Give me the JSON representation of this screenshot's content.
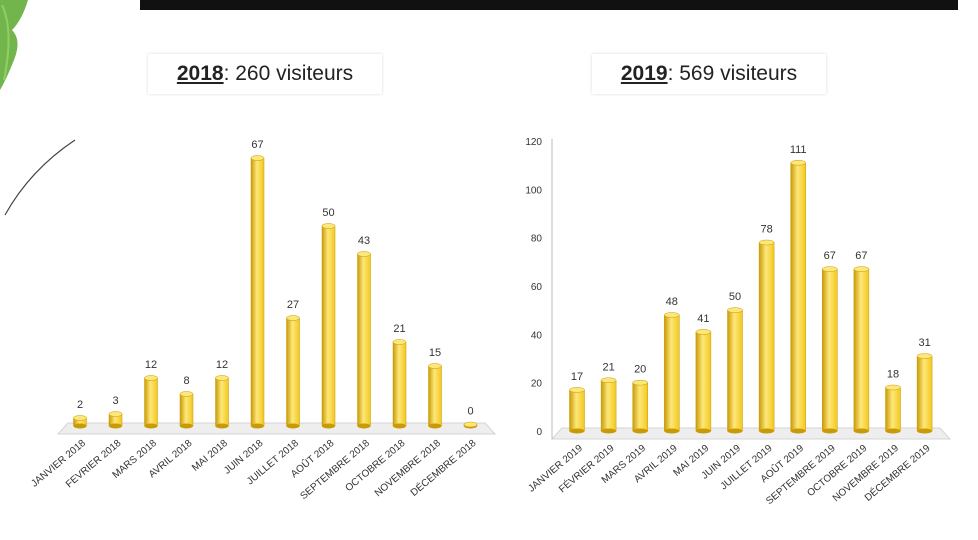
{
  "titles": [
    {
      "year": "2018",
      "rest": " : 260 visiteurs"
    },
    {
      "year": "2019",
      "rest": " : 569 visiteurs"
    }
  ],
  "colors": {
    "bar": "#f2c81e",
    "bar_dark": "#c99a06",
    "bar_light": "#fde77a",
    "floor": "#d4d4d4"
  },
  "chart_data": [
    {
      "type": "bar",
      "categories": [
        "JANVIER 2018",
        "FEVRIER 2018",
        "MARS 2018",
        "AVRIL 2018",
        "MAI 2018",
        "JUIN 2018",
        "JUILLET 2018",
        "AOÛT 2018",
        "SEPTEMBRE 2018",
        "OCTOBRE 2018",
        "NOVEMBRE 2018",
        "DÉCEMBRE 2018"
      ],
      "values": [
        2,
        3,
        12,
        8,
        12,
        67,
        27,
        50,
        43,
        21,
        15,
        0
      ],
      "ylim": [
        0,
        70
      ],
      "y_axis_visible": false
    },
    {
      "type": "bar",
      "categories": [
        "JANVIER 2019",
        "FÉVRIER 2019",
        "MARS 2019",
        "AVRIL 2019",
        "MAI 2019",
        "JUIN 2019",
        "JUILLET 2019",
        "AOÛT 2019",
        "SEPTEMBRE 2019",
        "OCTOBRE 2019",
        "NOVEMBRE 2019",
        "DÉCEMBRE 2019"
      ],
      "values": [
        17,
        21,
        20,
        48,
        41,
        50,
        78,
        111,
        67,
        67,
        18,
        31
      ],
      "ylim": [
        0,
        120
      ],
      "yticks": [
        0,
        20,
        40,
        60,
        80,
        100,
        120
      ],
      "y_axis_visible": true
    }
  ]
}
